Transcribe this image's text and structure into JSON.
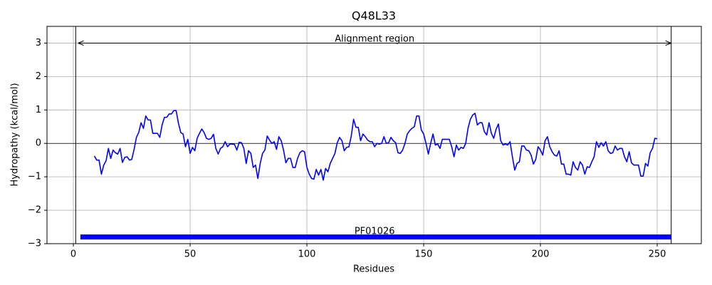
{
  "chart_data": {
    "type": "line",
    "title": "Q48L33",
    "xlabel": "Residues",
    "ylabel": "Hydropathy (kcal/mol)",
    "xlim": [
      -11.3,
      268.9
    ],
    "ylim": [
      -3,
      3.5
    ],
    "xticks": [
      0,
      50,
      100,
      150,
      200,
      250
    ],
    "yticks": [
      {
        "value": -3,
        "label": "−3"
      },
      {
        "value": -2,
        "label": "−2"
      },
      {
        "value": -1,
        "label": "−1"
      },
      0,
      1,
      2,
      3
    ],
    "grid": true,
    "zero_line": 0,
    "series": [
      {
        "color": "#0000ff",
        "x": [
          9,
          10,
          11,
          12,
          13,
          14,
          15,
          16,
          17,
          18,
          19,
          20,
          21,
          22,
          23,
          24,
          25,
          26,
          27,
          28,
          29,
          30,
          31,
          32,
          33,
          34,
          35,
          36,
          37,
          38,
          39,
          40,
          41,
          42,
          43,
          44,
          45,
          46,
          47,
          48,
          49,
          50,
          51,
          52,
          53,
          54,
          55,
          56,
          57,
          58,
          59,
          60,
          61,
          62,
          63,
          64,
          65,
          66,
          67,
          68,
          69,
          70,
          71,
          72,
          73,
          74,
          75,
          76,
          77,
          78,
          79,
          80,
          81,
          82,
          83,
          84,
          85,
          86,
          87,
          88,
          89,
          90,
          91,
          92,
          93,
          94,
          95,
          96,
          97,
          98,
          99,
          100,
          101,
          102,
          103,
          104,
          105,
          106,
          107,
          108,
          109,
          110,
          111,
          112,
          113,
          114,
          115,
          116,
          117,
          118,
          119,
          120,
          121,
          122,
          123,
          124,
          125,
          126,
          127,
          128,
          129,
          130,
          131,
          132,
          133,
          134,
          135,
          136,
          137,
          138,
          139,
          140,
          141,
          142,
          143,
          144,
          145,
          146,
          147,
          148,
          149,
          150,
          151,
          152,
          153,
          154,
          155,
          156,
          157,
          158,
          159,
          160,
          161,
          162,
          163,
          164,
          165,
          166,
          167,
          168,
          169,
          170,
          171,
          172,
          173,
          174,
          175,
          176,
          177,
          178,
          179,
          180,
          181,
          182,
          183,
          184,
          185,
          186,
          187,
          188,
          189,
          190,
          191,
          192,
          193,
          194,
          195,
          196,
          197,
          198,
          199,
          200,
          201,
          202,
          203,
          204,
          205,
          206,
          207,
          208,
          209,
          210,
          211,
          212,
          213,
          214,
          215,
          216,
          217,
          218,
          219,
          220,
          221,
          222,
          223,
          224,
          225,
          226,
          227,
          228,
          229,
          230,
          231,
          232,
          233,
          234,
          235,
          236,
          237,
          238,
          239,
          240,
          241,
          242,
          243,
          244,
          245,
          246,
          247,
          248,
          249,
          250
        ],
        "values": [
          -0.38,
          -0.5,
          -0.5,
          -0.92,
          -0.65,
          -0.52,
          -0.15,
          -0.45,
          -0.2,
          -0.28,
          -0.32,
          -0.15,
          -0.57,
          -0.42,
          -0.4,
          -0.5,
          -0.48,
          -0.18,
          0.18,
          0.33,
          0.62,
          0.45,
          0.82,
          0.7,
          0.7,
          0.3,
          0.3,
          0.3,
          0.18,
          0.55,
          0.78,
          0.78,
          0.88,
          0.88,
          0.98,
          0.98,
          0.6,
          0.32,
          0.28,
          -0.1,
          0.12,
          -0.3,
          -0.12,
          -0.22,
          0.15,
          0.3,
          0.43,
          0.32,
          0.15,
          0.12,
          0.15,
          0.27,
          -0.15,
          -0.32,
          -0.15,
          -0.1,
          0.05,
          -0.1,
          -0.02,
          -0.02,
          -0.03,
          -0.2,
          0.03,
          0.02,
          -0.15,
          -0.6,
          -0.22,
          -0.3,
          -0.72,
          -0.65,
          -1.05,
          -0.6,
          -0.3,
          -0.2,
          0.22,
          0.1,
          0.0,
          0.05,
          -0.18,
          0.2,
          0.08,
          -0.2,
          -0.58,
          -0.45,
          -0.45,
          -0.72,
          -0.72,
          -0.45,
          -0.28,
          -0.22,
          -0.25,
          -0.72,
          -0.92,
          -1.05,
          -1.07,
          -0.78,
          -0.95,
          -0.78,
          -1.1,
          -0.75,
          -0.85,
          -0.6,
          -0.45,
          -0.3,
          0.02,
          0.18,
          0.08,
          -0.22,
          -0.12,
          -0.1,
          0.22,
          0.72,
          0.48,
          0.48,
          0.08,
          0.28,
          0.2,
          0.1,
          0.05,
          0.05,
          -0.1,
          0.0,
          -0.02,
          0.0,
          0.2,
          0.0,
          0.02,
          0.18,
          0.08,
          0.02,
          -0.28,
          -0.3,
          -0.2,
          0.0,
          0.28,
          0.38,
          0.45,
          0.5,
          0.82,
          0.82,
          0.4,
          0.28,
          0.0,
          -0.32,
          0.0,
          0.28,
          -0.05,
          -0.02,
          -0.15,
          0.12,
          0.12,
          0.12,
          0.12,
          -0.1,
          -0.4,
          -0.05,
          -0.2,
          -0.12,
          -0.15,
          0.0,
          0.45,
          0.72,
          0.85,
          0.9,
          0.55,
          0.62,
          0.62,
          0.35,
          0.25,
          0.62,
          0.3,
          0.15,
          0.42,
          0.58,
          0.08,
          -0.05,
          -0.02,
          -0.05,
          0.05,
          -0.4,
          -0.8,
          -0.6,
          -0.55,
          -0.08,
          -0.08,
          -0.2,
          -0.22,
          -0.35,
          -0.62,
          -0.48,
          -0.1,
          -0.2,
          -0.35,
          0.08,
          0.2,
          -0.1,
          -0.25,
          -0.35,
          -0.38,
          -0.22,
          -0.62,
          -0.62,
          -0.92,
          -0.92,
          -0.95,
          -0.55,
          -0.72,
          -0.8,
          -0.55,
          -0.65,
          -0.92,
          -0.7,
          -0.72,
          -0.55,
          -0.4,
          0.05,
          -0.12,
          0.02,
          -0.08,
          0.05,
          -0.22,
          -0.3,
          -0.28,
          -0.08,
          -0.2,
          -0.15,
          -0.15,
          -0.4,
          -0.55,
          -0.25,
          -0.58,
          -0.65,
          -0.65,
          -0.65,
          -0.98,
          -0.98,
          -0.6,
          -0.68,
          -0.28,
          -0.15,
          0.15,
          0.14
        ]
      }
    ],
    "region": {
      "label": "Alignment region",
      "start": 1,
      "end": 256,
      "arrow_start": 2,
      "arrow_end": 256,
      "y": 3,
      "label_x": 129,
      "label_y": 3.1
    },
    "domain": {
      "name": "PF01026",
      "start": 3,
      "end": 256,
      "y": -2.8,
      "label_x": 129,
      "label_y": -2.6,
      "color": "#0000ff"
    }
  }
}
